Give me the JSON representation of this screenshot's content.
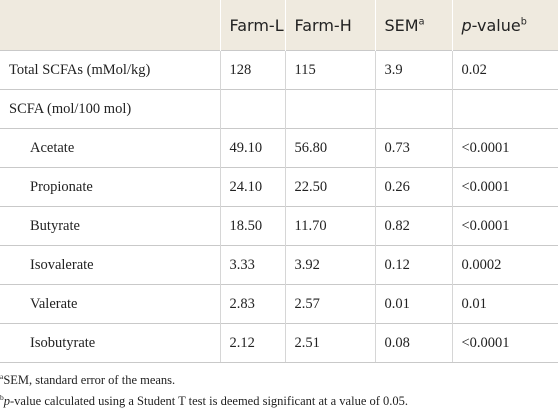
{
  "table": {
    "header": [
      {
        "text": "Farm-L"
      },
      {
        "text": "Farm-H"
      },
      {
        "text": "SEM",
        "sup": "a"
      },
      {
        "italic": "p",
        "text": "-value",
        "sup": "b"
      }
    ],
    "rows": [
      {
        "label": "Total SCFAs (mMol/kg)",
        "values": [
          "128",
          "115",
          "3.9",
          "0.02"
        ]
      }
    ],
    "group": {
      "label": "SCFA (mol/100 mol)",
      "rows": [
        {
          "label": "Acetate",
          "values": [
            "49.10",
            "56.80",
            "0.73",
            "<0.0001"
          ]
        },
        {
          "label": "Propionate",
          "values": [
            "24.10",
            "22.50",
            "0.26",
            "<0.0001"
          ]
        },
        {
          "label": "Butyrate",
          "values": [
            "18.50",
            "11.70",
            "0.82",
            "<0.0001"
          ]
        },
        {
          "label": "Isovalerate",
          "values": [
            "3.33",
            "3.92",
            "0.12",
            "0.0002"
          ]
        },
        {
          "label": "Valerate",
          "values": [
            "2.83",
            "2.57",
            "0.01",
            "0.01"
          ]
        },
        {
          "label": "Isobutyrate",
          "values": [
            "2.12",
            "2.51",
            "0.08",
            "<0.0001"
          ]
        }
      ]
    }
  },
  "footnotes": [
    {
      "sup": "a",
      "text": "SEM, standard error of the means."
    },
    {
      "sup": "b",
      "italic": "p",
      "text": "-value calculated using a Student T test is deemed significant at a value of 0.05."
    }
  ]
}
